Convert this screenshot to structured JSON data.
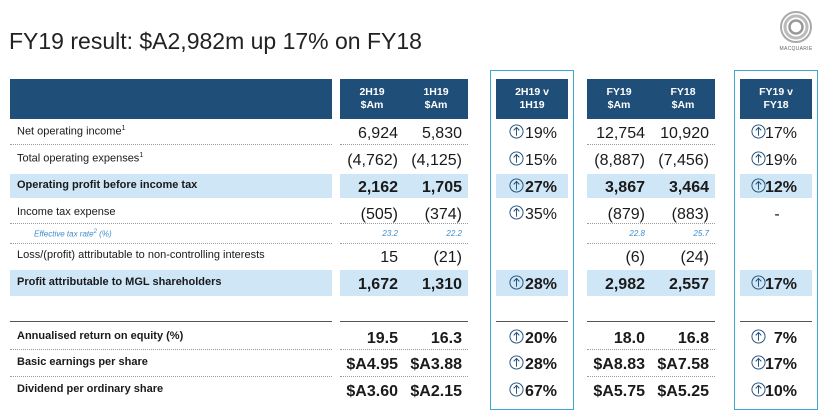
{
  "title": "FY19 result: $A2,982m up 17% on FY18",
  "logo": {
    "text": "MACQUARIE"
  },
  "columns": {
    "c2h19": "2H19\n$Am",
    "c1h19": "1H19\n$Am",
    "cmp_half": "2H19 v\n1H19",
    "fy19": "FY19\n$Am",
    "fy18": "FY18\n$Am",
    "cmp_year": "FY19 v\nFY18"
  },
  "rows": [
    {
      "label": "Net operating income",
      "sup": "1",
      "h2": "6,924",
      "h1": "5,830",
      "half_pct": "19%",
      "fy19": "12,754",
      "fy18": "10,920",
      "year_pct": "17%"
    },
    {
      "label": "Total operating expenses",
      "sup": "1",
      "h2": "(4,762)",
      "h1": "(4,125)",
      "half_pct": "15%",
      "fy19": "(8,887)",
      "fy18": "(7,456)",
      "year_pct": "19%"
    },
    {
      "label": "Operating profit before income tax",
      "h2": "2,162",
      "h1": "1,705",
      "half_pct": "27%",
      "fy19": "3,867",
      "fy18": "3,464",
      "year_pct": "12%"
    },
    {
      "label": "Income tax expense",
      "h2": "(505)",
      "h1": "(374)",
      "half_pct": "35%",
      "fy19": "(879)",
      "fy18": "(883)",
      "year_pct": "-"
    },
    {
      "label": "Effective tax rate",
      "sup": "2",
      "label_suffix": " (%)",
      "h2": "23.2",
      "h1": "22.2",
      "fy19": "22.8",
      "fy18": "25.7"
    },
    {
      "label": "Loss/(profit) attributable to non-controlling interests",
      "h2": "15",
      "h1": "(21)",
      "fy19": "(6)",
      "fy18": "(24)"
    },
    {
      "label": "Profit attributable to MGL shareholders",
      "h2": "1,672",
      "h1": "1,310",
      "half_pct": "28%",
      "fy19": "2,982",
      "fy18": "2,557",
      "year_pct": "17%"
    },
    {
      "label": "Annualised return on equity (%)",
      "h2": "19.5",
      "h1": "16.3",
      "half_pct": "20%",
      "fy19": "18.0",
      "fy18": "16.8",
      "year_pct": "7%"
    },
    {
      "label": "Basic earnings per share",
      "h2": "$A4.95",
      "h1": "$A3.88",
      "half_pct": "28%",
      "fy19": "$A8.83",
      "fy18": "$A7.58",
      "year_pct": "17%"
    },
    {
      "label": "Dividend per ordinary share",
      "h2": "$A3.60",
      "h1": "$A2.15",
      "half_pct": "67%",
      "fy19": "$A5.75",
      "fy18": "$A5.25",
      "year_pct": "10%"
    }
  ],
  "colors": {
    "header": "#1f4e79",
    "highlight": "#cfe6f7",
    "accent": "#3ea6d3",
    "italic": "#3a8cc9"
  },
  "icons": {
    "increase": "up-arrow-circle-icon"
  }
}
